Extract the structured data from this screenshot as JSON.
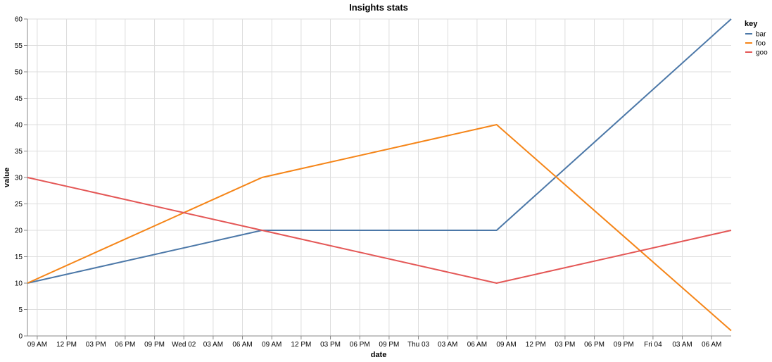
{
  "chart_data": {
    "type": "line",
    "title": "Insights stats",
    "xlabel": "date",
    "ylabel": "value",
    "ylim": [
      0,
      60
    ],
    "y_ticks": [
      0,
      5,
      10,
      15,
      20,
      25,
      30,
      35,
      40,
      45,
      50,
      55,
      60
    ],
    "x_range": [
      "2020-09-01T08:00",
      "2020-09-04T08:00"
    ],
    "x_ticks": [
      {
        "t": "2020-09-01T09:00",
        "label": "09 AM"
      },
      {
        "t": "2020-09-01T12:00",
        "label": "12 PM"
      },
      {
        "t": "2020-09-01T15:00",
        "label": "03 PM"
      },
      {
        "t": "2020-09-01T18:00",
        "label": "06 PM"
      },
      {
        "t": "2020-09-01T21:00",
        "label": "09 PM"
      },
      {
        "t": "2020-09-02T00:00",
        "label": "Wed 02"
      },
      {
        "t": "2020-09-02T03:00",
        "label": "03 AM"
      },
      {
        "t": "2020-09-02T06:00",
        "label": "06 AM"
      },
      {
        "t": "2020-09-02T09:00",
        "label": "09 AM"
      },
      {
        "t": "2020-09-02T12:00",
        "label": "12 PM"
      },
      {
        "t": "2020-09-02T15:00",
        "label": "03 PM"
      },
      {
        "t": "2020-09-02T18:00",
        "label": "06 PM"
      },
      {
        "t": "2020-09-02T21:00",
        "label": "09 PM"
      },
      {
        "t": "2020-09-03T00:00",
        "label": "Thu 03"
      },
      {
        "t": "2020-09-03T03:00",
        "label": "03 AM"
      },
      {
        "t": "2020-09-03T06:00",
        "label": "06 AM"
      },
      {
        "t": "2020-09-03T09:00",
        "label": "09 AM"
      },
      {
        "t": "2020-09-03T12:00",
        "label": "12 PM"
      },
      {
        "t": "2020-09-03T15:00",
        "label": "03 PM"
      },
      {
        "t": "2020-09-03T18:00",
        "label": "06 PM"
      },
      {
        "t": "2020-09-03T21:00",
        "label": "09 PM"
      },
      {
        "t": "2020-09-04T00:00",
        "label": "Fri 04"
      },
      {
        "t": "2020-09-04T03:00",
        "label": "03 AM"
      },
      {
        "t": "2020-09-04T06:00",
        "label": "06 AM"
      }
    ],
    "grid": true,
    "legend": {
      "title": "key",
      "placement": "top-right"
    },
    "series": [
      {
        "name": "bar",
        "color": "#4c78a8",
        "points": [
          {
            "x": "2020-09-01T08:00",
            "y": 10
          },
          {
            "x": "2020-09-02T08:00",
            "y": 20
          },
          {
            "x": "2020-09-03T08:00",
            "y": 20
          },
          {
            "x": "2020-09-04T08:00",
            "y": 60
          }
        ]
      },
      {
        "name": "foo",
        "color": "#f58518",
        "points": [
          {
            "x": "2020-09-01T08:00",
            "y": 10
          },
          {
            "x": "2020-09-02T08:00",
            "y": 30
          },
          {
            "x": "2020-09-03T08:00",
            "y": 40
          },
          {
            "x": "2020-09-04T08:00",
            "y": 1
          }
        ]
      },
      {
        "name": "goo",
        "color": "#e45756",
        "points": [
          {
            "x": "2020-09-01T08:00",
            "y": 30
          },
          {
            "x": "2020-09-02T08:00",
            "y": 20
          },
          {
            "x": "2020-09-03T08:00",
            "y": 10
          },
          {
            "x": "2020-09-04T08:00",
            "y": 20
          }
        ]
      }
    ]
  }
}
